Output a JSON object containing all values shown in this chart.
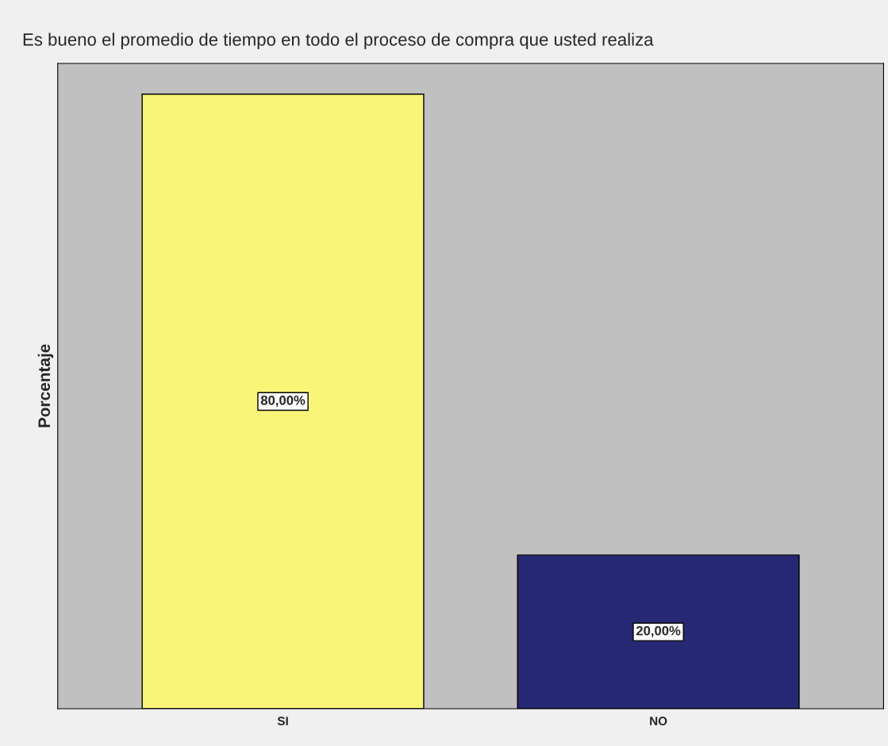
{
  "chart_data": {
    "type": "bar",
    "title": "Es bueno el promedio de tiempo en todo el proceso de compra que usted realiza",
    "ylabel": "Porcentaje",
    "categories": [
      "SI",
      "NO"
    ],
    "values": [
      80,
      20
    ],
    "colors": [
      "#f9f578",
      "#262874"
    ],
    "value_labels": [
      "80,00%",
      "20,00%"
    ],
    "tick_labels": "x",
    "grid": false,
    "legend": false
  }
}
